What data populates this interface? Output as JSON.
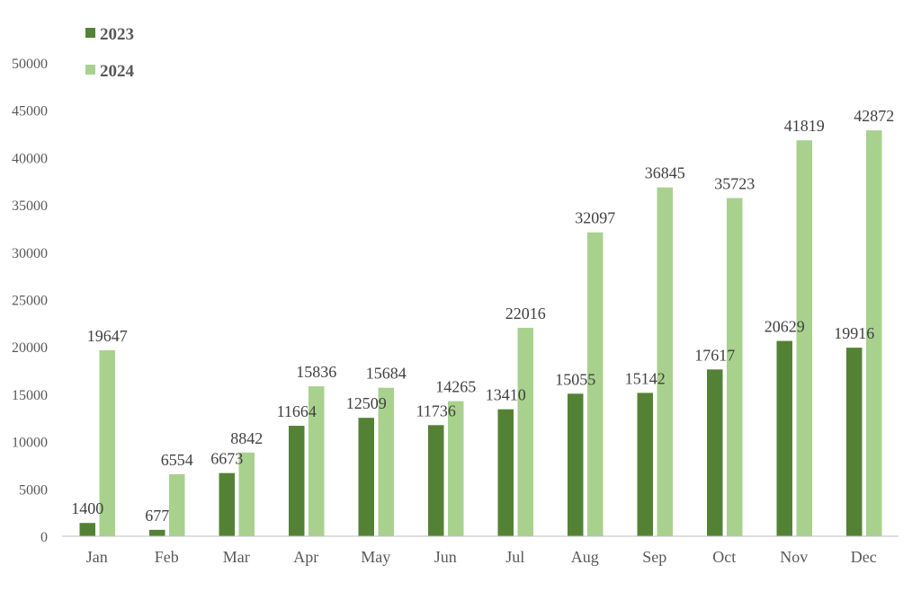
{
  "chart_data": {
    "type": "bar",
    "categories": [
      "Jan",
      "Feb",
      "Mar",
      "Apr",
      "May",
      "Jun",
      "Jul",
      "Aug",
      "Sep",
      "Oct",
      "Nov",
      "Dec"
    ],
    "series": [
      {
        "name": "2023",
        "color": "#548235",
        "values": [
          1400,
          677,
          6673,
          11664,
          12509,
          11736,
          13410,
          15055,
          15142,
          17617,
          20629,
          19916
        ]
      },
      {
        "name": "2024",
        "color": "#a9d18e",
        "values": [
          19647,
          6554,
          8842,
          15836,
          15684,
          14265,
          22016,
          32097,
          36845,
          35723,
          41819,
          42872
        ]
      }
    ],
    "yticks": [
      0,
      5000,
      10000,
      15000,
      20000,
      25000,
      30000,
      35000,
      40000,
      45000,
      50000
    ],
    "ylim": [
      0,
      50000
    ],
    "grid": false,
    "legend_position": "top-left",
    "data_labels": true
  }
}
